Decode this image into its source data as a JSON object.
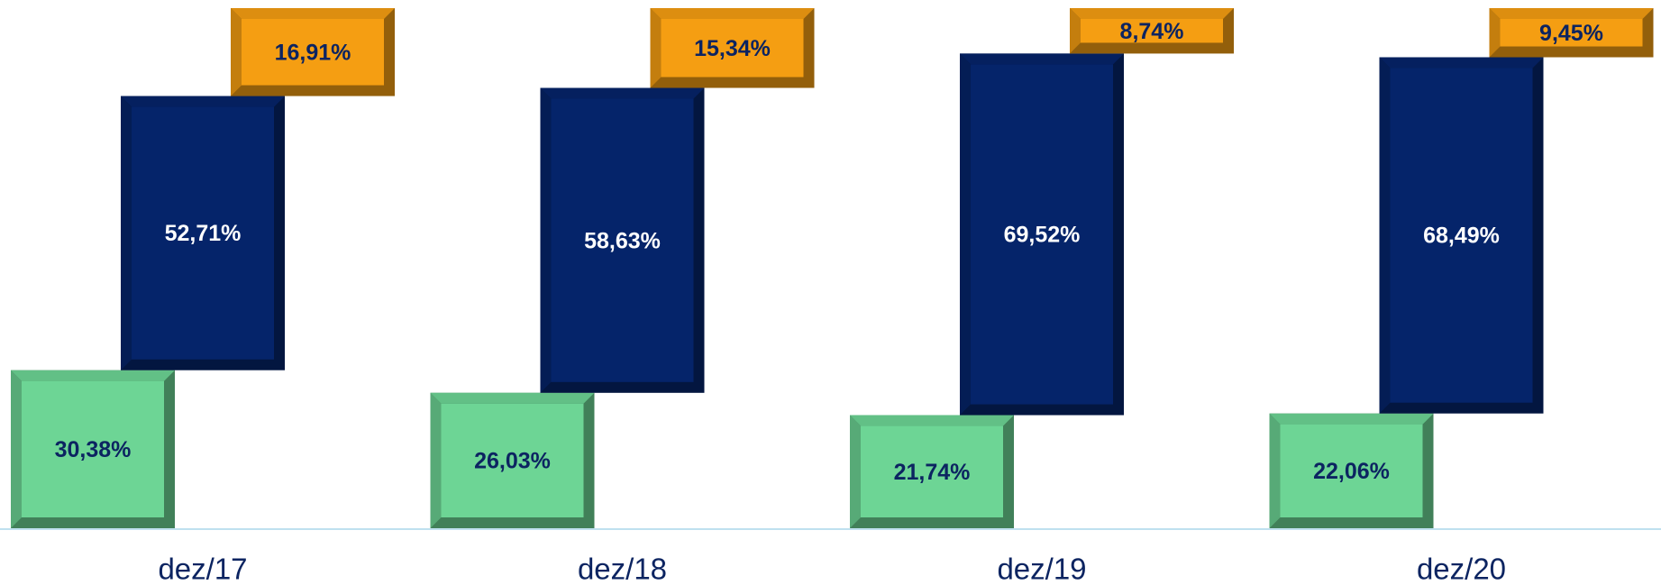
{
  "chart_data": {
    "type": "waterfall-stack",
    "categories": [
      "dez/17",
      "dez/18",
      "dez/19",
      "dez/20"
    ],
    "ylim": [
      0,
      100
    ],
    "series": [
      {
        "color": "#6dd595",
        "values": [
          30.38,
          26.03,
          21.74,
          22.06
        ],
        "value_labels": [
          "30,38%",
          "26,03%",
          "21,74%",
          "22,06%"
        ]
      },
      {
        "color": "#05246a",
        "values": [
          52.71,
          58.63,
          69.52,
          68.49
        ],
        "value_labels": [
          "52,71%",
          "58,63%",
          "69,52%",
          "68,49%"
        ]
      },
      {
        "color": "#f59e12",
        "values": [
          16.91,
          15.34,
          8.74,
          9.45
        ],
        "value_labels": [
          "16,91%",
          "15,34%",
          "8,74%",
          "9,45%"
        ]
      }
    ]
  }
}
